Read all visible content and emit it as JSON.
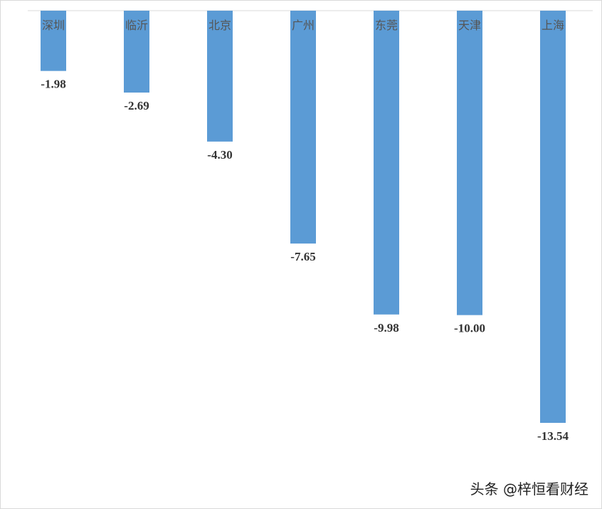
{
  "chart_data": {
    "type": "bar",
    "categories": [
      "深圳",
      "临沂",
      "北京",
      "广州",
      "东莞",
      "天津",
      "上海"
    ],
    "values": [
      -1.98,
      -2.69,
      -4.3,
      -7.65,
      -9.98,
      -10.0,
      -13.54
    ],
    "value_labels": [
      "-1.98",
      "-2.69",
      "-4.30",
      "-7.65",
      "-9.98",
      "-10.00",
      "-13.54"
    ],
    "title": "",
    "xlabel": "",
    "ylabel": "",
    "ylim": [
      -13.54,
      0
    ],
    "grid": false,
    "bar_color": "#5b9bd5"
  },
  "watermark": "头条 @梓恒看财经"
}
